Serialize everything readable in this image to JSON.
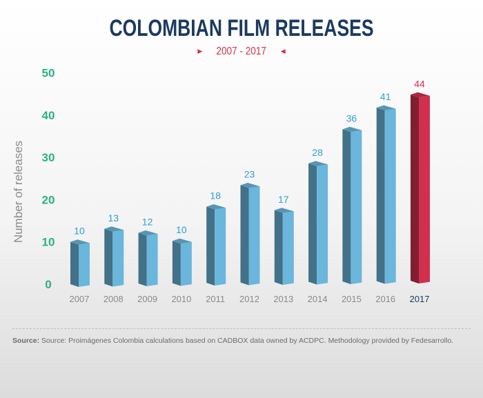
{
  "title": "COLOMBIAN FILM RELEASES",
  "subtitle": "2007 - 2017",
  "colors": {
    "bar": "#6ab6dc",
    "bar_highlight": "#d0304e",
    "y_ticks": "#2ab08a",
    "labels": "#2a9fd6",
    "title": "#1b3a60"
  },
  "chart_data": {
    "type": "bar",
    "title": "COLOMBIAN FILM RELEASES",
    "subtitle": "2007 - 2017",
    "xlabel": "",
    "ylabel": "Number of releases",
    "ylim": [
      0,
      50
    ],
    "yticks": [
      0,
      10,
      20,
      30,
      40,
      50
    ],
    "grid": false,
    "categories": [
      "2007",
      "2008",
      "2009",
      "2010",
      "2011",
      "2012",
      "2013",
      "2014",
      "2015",
      "2016",
      "2017"
    ],
    "values": [
      10,
      13,
      12,
      10,
      18,
      23,
      17,
      28,
      36,
      41,
      44
    ],
    "highlight": "2017"
  },
  "source": {
    "label": "Source:",
    "text": "Source: Proimágenes Colombia calculations based on CADBOX data owned by ACDPC. Methodology provided by Fedesarrollo."
  }
}
